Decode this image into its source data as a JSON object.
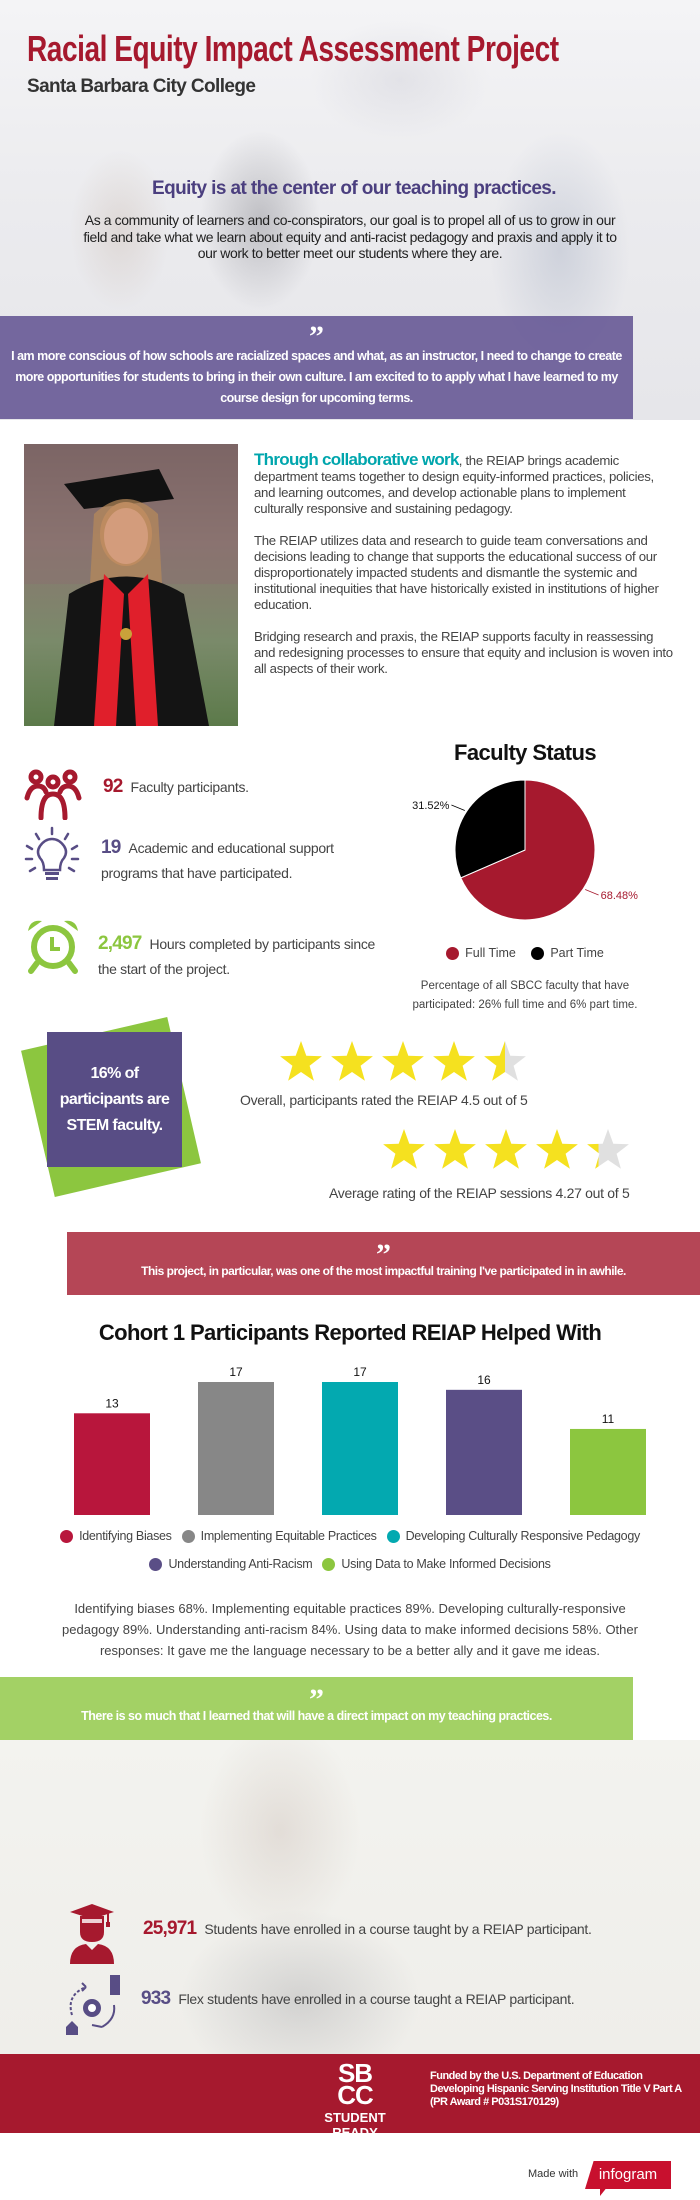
{
  "header": {
    "title": "Racial Equity Impact Assessment Project",
    "subtitle": "Santa Barbara City College"
  },
  "intro": {
    "heading": "Equity is at the center of our teaching practices.",
    "body": "As a community of learners and co-conspirators, our goal is to propel all of us to grow in our field and take what we learn about equity and anti-racist pedagogy and praxis and apply it to our work to better meet our students where they are."
  },
  "quotes": [
    {
      "mark": "”",
      "text": "I am more conscious of how schools are racialized spaces and what, as an instructor, I need to change to create more opportunities for students to bring in their own culture. I am excited to to apply what I have learned to my course design for upcoming terms.",
      "color": "#5f5091"
    },
    {
      "mark": "”",
      "text": "This project, in particular, was one of the most impactful training I've participated in in awhile.",
      "color": "#b54656"
    },
    {
      "mark": "”",
      "text": "There is so much that I learned that will have a direct impact on my teaching practices.",
      "color": "#8cc63f"
    }
  ],
  "about": {
    "lead": "Through collaborative work",
    "p1": ", the REIAP brings academic department teams together to design equity-informed practices, policies, and learning outcomes, and develop actionable plans to implement culturally responsive and sustaining pedagogy.",
    "p2": "The REIAP utilizes data and research to guide team conversations and decisions leading to change that supports the educational success of our disproportionately impacted students and dismantle the systemic and institutional inequities that have historically existed in institutions of higher education.",
    "p3": "Bridging research and praxis, the REIAP supports faculty in reassessing and redesigning processes to ensure that equity and inclusion is woven into all aspects of their work."
  },
  "stats": [
    {
      "icon": "people-group-icon",
      "value": "92",
      "label": "Faculty participants.",
      "color": "#a6192e"
    },
    {
      "icon": "lightbulb-icon",
      "value": "19",
      "label": "Academic and educational support programs that have participated.",
      "color": "#584d85"
    },
    {
      "icon": "alarm-clock-icon",
      "value": "2,497",
      "label": "Hours completed by participants since the start of the project.",
      "color": "#8cc63f"
    }
  ],
  "chart_data": [
    {
      "type": "pie",
      "title": "Faculty Status",
      "categories": [
        "Full Time",
        "Part Time"
      ],
      "values": [
        68.48,
        31.52
      ],
      "labels": [
        "68.48%",
        "31.52%"
      ],
      "colors": [
        "#a6192e",
        "#000000"
      ],
      "legend": "bottom",
      "caption": "Percentage of all SBCC faculty that have participated: 26% full time and 6% part time."
    },
    {
      "type": "bar",
      "title": "Cohort 1 Participants Reported REIAP Helped With",
      "categories": [
        "Identifying Biases",
        "Implementing Equitable Practices",
        "Developing Culturally Responsive Pedagogy",
        "Understanding Anti-Racism",
        "Using Data to Make Informed Decisions"
      ],
      "values": [
        13,
        17,
        17,
        16,
        11
      ],
      "colors": [
        "#b8163c",
        "#878787",
        "#03a9b0",
        "#5a4e86",
        "#8cc63f"
      ],
      "legend": "bottom",
      "grid": false
    }
  ],
  "stem": {
    "text": "16% of participants are STEM faculty."
  },
  "ratings": [
    {
      "value": 4.5,
      "max": 5,
      "text": "Overall, participants rated the REIAP 4.5 out of 5"
    },
    {
      "value": 4.27,
      "max": 5,
      "text": "Average rating of the REIAP sessions 4.27 out of 5"
    }
  ],
  "chart_para": "Identifying biases 68%. Implementing equitable practices 89%. Developing culturally-responsive pedagogy 89%. Understanding anti-racism 84%. Using data to make informed decisions 58%. Other responses: It gave me the language necessary to be a better ally and it gave me ideas.",
  "students": [
    {
      "icon": "graduate-icon",
      "value": "25,971",
      "label": "Students have enrolled in a course taught by a REIAP participant.",
      "color": "#a6192e"
    },
    {
      "icon": "flex-learning-icon",
      "value": "933",
      "label": "Flex students have enrolled in a course taught a REIAP participant.",
      "color": "#584d85"
    }
  ],
  "footer": {
    "logo_top": "SB",
    "logo_bottom": "CC",
    "logo_tagline": "STUDENT READY",
    "funded_lines": [
      "Funded by the U.S. Department of Education",
      "Developing Hispanic Serving Institution Title V Part A",
      "(PR Award # P031S170129)"
    ],
    "made_with": "Made with",
    "brand": "infogram"
  },
  "colors": {
    "primary": "#a6192e",
    "purple": "#584d85",
    "teal": "#00a6ad",
    "green": "#8cc63f",
    "star": "#f5e11f",
    "star_empty": "#e0e0e0"
  }
}
